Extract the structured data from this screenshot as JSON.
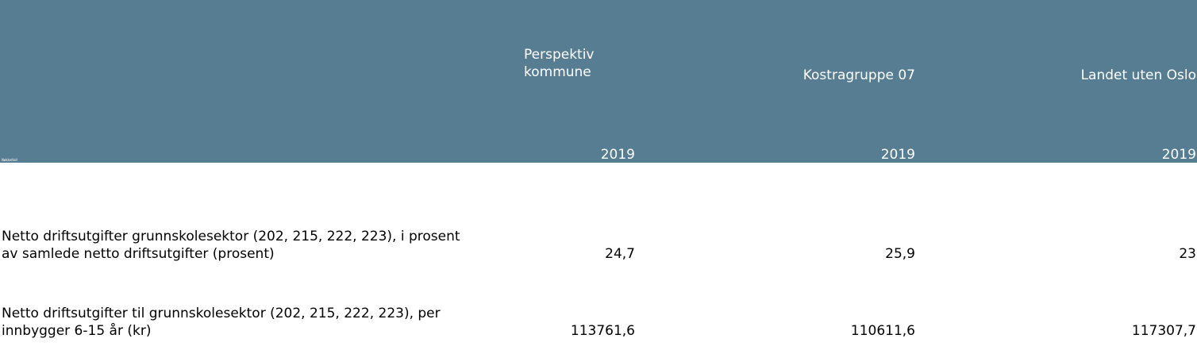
{
  "header": {
    "columns": [
      {
        "name_line1": "Perspektiv",
        "name_line2": "kommune",
        "year": "2019"
      },
      {
        "name": "Kostragruppe 07",
        "year": "2019"
      },
      {
        "name": "Landet uten Oslo",
        "year": "2019"
      }
    ],
    "corner_label": "Nøkkeltall"
  },
  "rows": [
    {
      "label_line1": "Netto driftsutgifter grunnskolesektor (202, 215, 222, 223), i prosent",
      "label_line2": "av samlede netto driftsutgifter (prosent)",
      "values": [
        "24,7",
        "25,9",
        "23"
      ]
    },
    {
      "label_line1": "Netto driftsutgifter til grunnskolesektor (202, 215, 222, 223), per",
      "label_line2": "innbygger 6-15 år (kr)",
      "values": [
        "113761,6",
        "110611,6",
        "117307,7"
      ]
    }
  ],
  "colors": {
    "header_bg": "#577d93",
    "header_text": "#ffffff"
  }
}
